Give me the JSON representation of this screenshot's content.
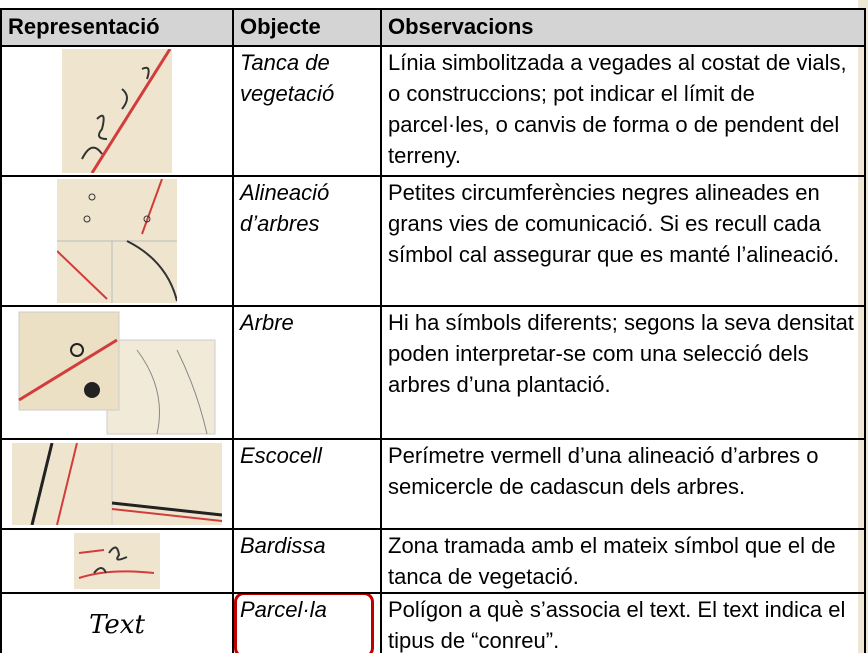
{
  "table": {
    "headers": [
      "Representació",
      "Objecte",
      "Observacions"
    ],
    "rows": [
      {
        "object": "Tanca de vegetació",
        "observations": "Línia simbolitzada a vegades al costat de vials, o construccions; pot indicar el límit de parcel·les, o canvis de forma o de pendent del terreny."
      },
      {
        "object": "Alineació d’arbres",
        "observations": "Petites circumferències negres alineades en grans vies de comunicació. Si es recull cada símbol cal assegurar que es manté l’alineació."
      },
      {
        "object": "Arbre",
        "observations": "Hi ha símbols diferents; segons la seva densitat poden interpretar-se com una selecció dels arbres d’una plantació."
      },
      {
        "object": "Escocell",
        "observations": "Perímetre vermell d’una alineació d’arbres o semicercle de cadascun dels arbres."
      },
      {
        "object": "Bardissa",
        "observations": "Zona tramada amb el mateix símbol que el de tanca de vegetació."
      },
      {
        "symbol": "Text",
        "object": "Parcel·la",
        "observations": "Polígon a què s’associa el text. El text indica el tipus de “conreu”."
      }
    ]
  }
}
